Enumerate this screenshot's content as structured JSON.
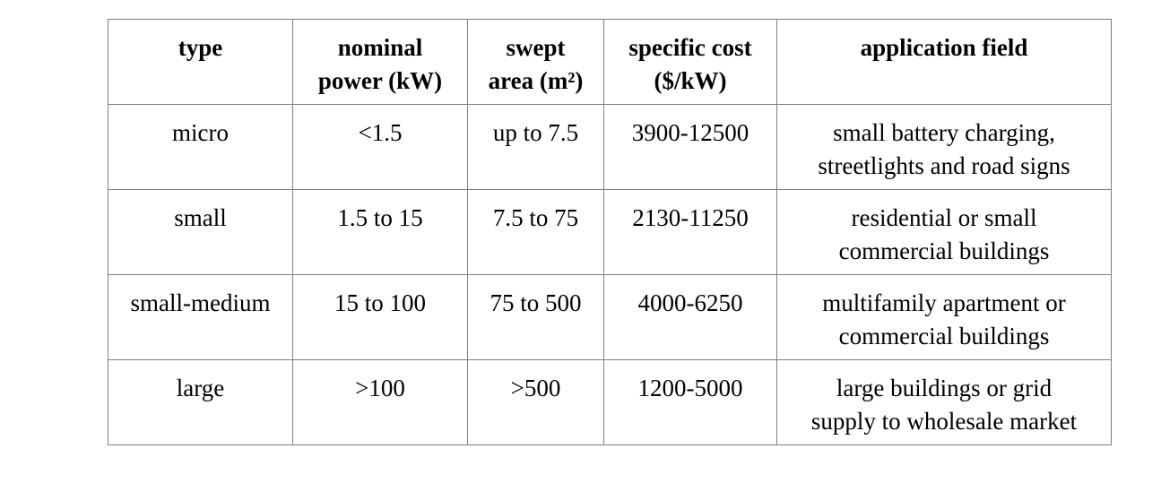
{
  "table": {
    "headers": [
      [
        "type"
      ],
      [
        "nominal",
        "power (kW)"
      ],
      [
        "swept",
        "area (m²)"
      ],
      [
        "specific cost",
        "($/kW)"
      ],
      [
        "application field"
      ]
    ],
    "rows": [
      {
        "type": "micro",
        "nominal_power": "<1.5",
        "swept_area": "up to 7.5",
        "specific_cost": "3900-12500",
        "application_field": [
          "small battery charging,",
          "streetlights and road signs"
        ]
      },
      {
        "type": "small",
        "nominal_power": "1.5 to 15",
        "swept_area": "7.5 to 75",
        "specific_cost": "2130-11250",
        "application_field": [
          "residential or small",
          "commercial buildings"
        ]
      },
      {
        "type": "small-medium",
        "nominal_power": "15 to 100",
        "swept_area": "75 to 500",
        "specific_cost": "4000-6250",
        "application_field": [
          "multifamily apartment or",
          "commercial buildings"
        ]
      },
      {
        "type": "large",
        "nominal_power": ">100",
        "swept_area": ">500",
        "specific_cost": "1200-5000",
        "application_field": [
          "large buildings or grid",
          "supply to wholesale market"
        ]
      }
    ]
  }
}
